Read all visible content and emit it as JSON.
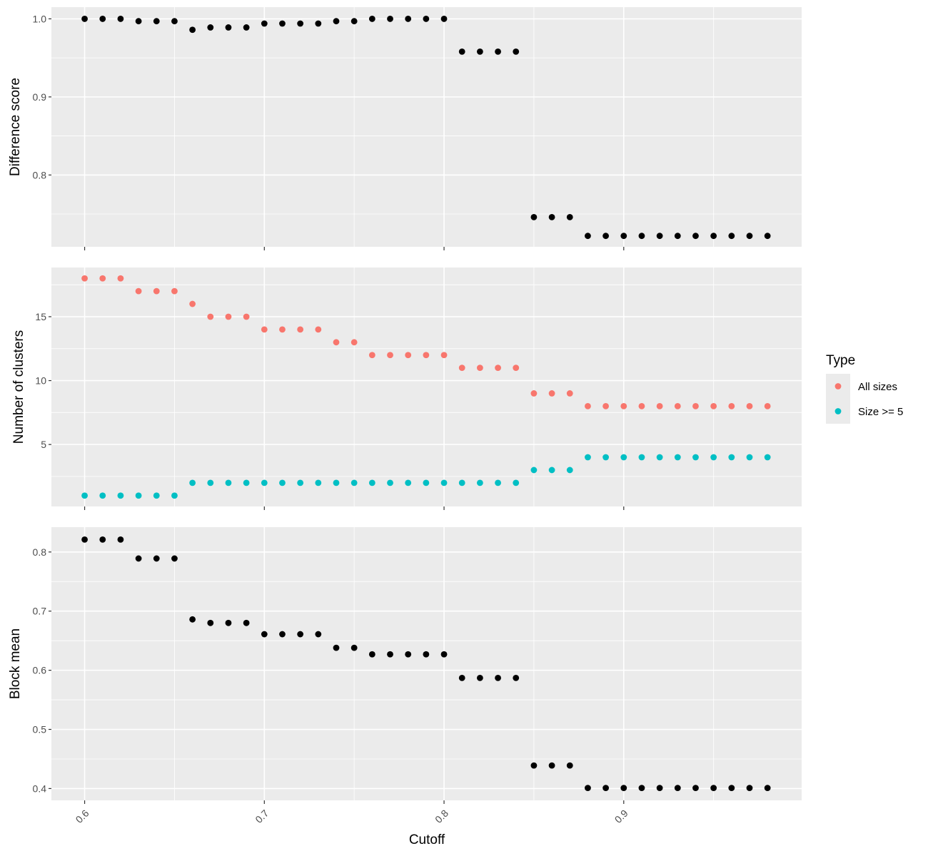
{
  "chart_data": [
    {
      "type": "scatter",
      "panel": "top",
      "ylabel": "Difference score",
      "xlabel": "",
      "ylim": [
        0.708,
        1.015
      ],
      "y_ticks": [
        0.8,
        0.9,
        1.0
      ],
      "y_tick_labels": [
        "0.8",
        "0.9",
        "1.0"
      ],
      "x": [
        0.6,
        0.61,
        0.62,
        0.63,
        0.64,
        0.65,
        0.66,
        0.67,
        0.68,
        0.69,
        0.7,
        0.71,
        0.72,
        0.73,
        0.74,
        0.75,
        0.76,
        0.77,
        0.78,
        0.79,
        0.8,
        0.81,
        0.82,
        0.83,
        0.84,
        0.85,
        0.86,
        0.87,
        0.88,
        0.89,
        0.9,
        0.91,
        0.92,
        0.93,
        0.94,
        0.95,
        0.96,
        0.97,
        0.98
      ],
      "series": [
        {
          "color": "#000000",
          "values": [
            1.0,
            1.0,
            1.0,
            0.997,
            0.997,
            0.997,
            0.986,
            0.989,
            0.989,
            0.989,
            0.994,
            0.994,
            0.994,
            0.994,
            0.997,
            0.997,
            1.0,
            1.0,
            1.0,
            1.0,
            1.0,
            0.958,
            0.958,
            0.958,
            0.958,
            0.746,
            0.746,
            0.746,
            0.722,
            0.722,
            0.722,
            0.722,
            0.722,
            0.722,
            0.722,
            0.722,
            0.722,
            0.722,
            0.722
          ]
        }
      ]
    },
    {
      "type": "scatter",
      "panel": "middle",
      "ylabel": "Number of clusters",
      "xlabel": "",
      "ylim": [
        0.15,
        18.85
      ],
      "y_ticks": [
        5,
        10,
        15
      ],
      "y_tick_labels": [
        "5",
        "10",
        "15"
      ],
      "x": [
        0.6,
        0.61,
        0.62,
        0.63,
        0.64,
        0.65,
        0.66,
        0.67,
        0.68,
        0.69,
        0.7,
        0.71,
        0.72,
        0.73,
        0.74,
        0.75,
        0.76,
        0.77,
        0.78,
        0.79,
        0.8,
        0.81,
        0.82,
        0.83,
        0.84,
        0.85,
        0.86,
        0.87,
        0.88,
        0.89,
        0.9,
        0.91,
        0.92,
        0.93,
        0.94,
        0.95,
        0.96,
        0.97,
        0.98
      ],
      "series": [
        {
          "name": "All sizes",
          "color": "#f8766d",
          "values": [
            18,
            18,
            18,
            17,
            17,
            17,
            16,
            15,
            15,
            15,
            14,
            14,
            14,
            14,
            13,
            13,
            12,
            12,
            12,
            12,
            12,
            11,
            11,
            11,
            11,
            9,
            9,
            9,
            8,
            8,
            8,
            8,
            8,
            8,
            8,
            8,
            8,
            8,
            8
          ]
        },
        {
          "name": "Size >= 5",
          "color": "#00bfc4",
          "values": [
            1,
            1,
            1,
            1,
            1,
            1,
            2,
            2,
            2,
            2,
            2,
            2,
            2,
            2,
            2,
            2,
            2,
            2,
            2,
            2,
            2,
            2,
            2,
            2,
            2,
            3,
            3,
            3,
            4,
            4,
            4,
            4,
            4,
            4,
            4,
            4,
            4,
            4,
            4
          ]
        }
      ]
    },
    {
      "type": "scatter",
      "panel": "bottom",
      "ylabel": "Block mean",
      "xlabel": "Cutoff",
      "ylim": [
        0.38,
        0.842
      ],
      "y_ticks": [
        0.4,
        0.5,
        0.6,
        0.7,
        0.8
      ],
      "y_tick_labels": [
        "0.4",
        "0.5",
        "0.6",
        "0.7",
        "0.8"
      ],
      "x": [
        0.6,
        0.61,
        0.62,
        0.63,
        0.64,
        0.65,
        0.66,
        0.67,
        0.68,
        0.69,
        0.7,
        0.71,
        0.72,
        0.73,
        0.74,
        0.75,
        0.76,
        0.77,
        0.78,
        0.79,
        0.8,
        0.81,
        0.82,
        0.83,
        0.84,
        0.85,
        0.86,
        0.87,
        0.88,
        0.89,
        0.9,
        0.91,
        0.92,
        0.93,
        0.94,
        0.95,
        0.96,
        0.97,
        0.98
      ],
      "series": [
        {
          "color": "#000000",
          "values": [
            0.821,
            0.821,
            0.821,
            0.789,
            0.789,
            0.789,
            0.686,
            0.68,
            0.68,
            0.68,
            0.661,
            0.661,
            0.661,
            0.661,
            0.638,
            0.638,
            0.627,
            0.627,
            0.627,
            0.627,
            0.627,
            0.587,
            0.587,
            0.587,
            0.587,
            0.439,
            0.439,
            0.439,
            0.401,
            0.401,
            0.401,
            0.401,
            0.401,
            0.401,
            0.401,
            0.401,
            0.401,
            0.401,
            0.401
          ]
        }
      ]
    }
  ],
  "shared_x_axis": {
    "xlim": [
      0.5815,
      0.999
    ],
    "ticks": [
      0.6,
      0.7,
      0.8,
      0.9
    ],
    "tick_labels": [
      "0.6",
      "0.7",
      "0.8",
      "0.9"
    ],
    "title": "Cutoff"
  },
  "legend": {
    "title": "Type",
    "placement": "right",
    "entries": [
      {
        "label": "All sizes",
        "color": "#f8766d"
      },
      {
        "label": "Size >= 5",
        "color": "#00bfc4"
      }
    ]
  },
  "grid": true
}
